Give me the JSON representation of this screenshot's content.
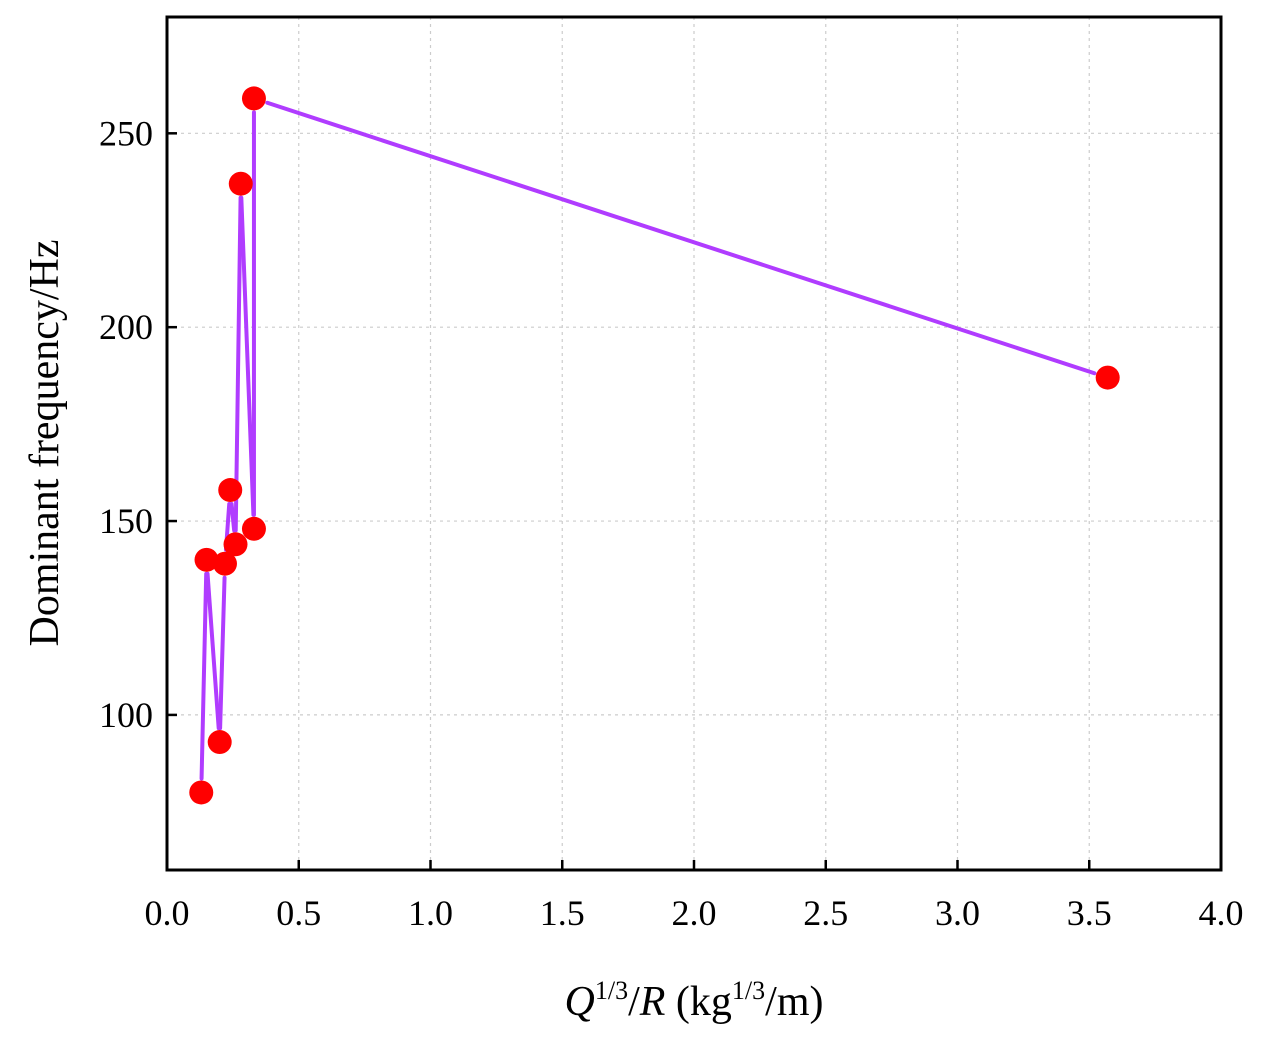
{
  "chart_data": {
    "type": "line",
    "title": "",
    "xlabel": {
      "main": "Q",
      "sup": "1/3",
      "slash": "/",
      "var": "R",
      "unit_open": " (kg",
      "unit_sup": "1/3",
      "unit_close": "/m)"
    },
    "ylabel": "Dominant frequency/Hz",
    "xlim": [
      0.0,
      4.0
    ],
    "ylim": [
      60,
      280
    ],
    "x_ticks": [
      "0.0",
      "0.5",
      "1.0",
      "1.5",
      "2.0",
      "2.5",
      "3.0",
      "3.5",
      "4.0"
    ],
    "x_tick_values": [
      0.0,
      0.5,
      1.0,
      1.5,
      2.0,
      2.5,
      3.0,
      3.5,
      4.0
    ],
    "y_ticks": [
      "100",
      "150",
      "200",
      "250"
    ],
    "y_tick_values": [
      100,
      150,
      200,
      250
    ],
    "grid": true,
    "series": [
      {
        "name": "Dominant frequency",
        "line_color": "#b03cff",
        "marker_color": "#ff0000",
        "points": [
          {
            "x": 0.13,
            "y": 80
          },
          {
            "x": 0.15,
            "y": 140
          },
          {
            "x": 0.2,
            "y": 93
          },
          {
            "x": 0.22,
            "y": 139
          },
          {
            "x": 0.24,
            "y": 158
          },
          {
            "x": 0.26,
            "y": 144
          },
          {
            "x": 0.28,
            "y": 237
          },
          {
            "x": 0.33,
            "y": 148
          },
          {
            "x": 0.33,
            "y": 259
          },
          {
            "x": 3.57,
            "y": 187
          }
        ]
      }
    ]
  }
}
